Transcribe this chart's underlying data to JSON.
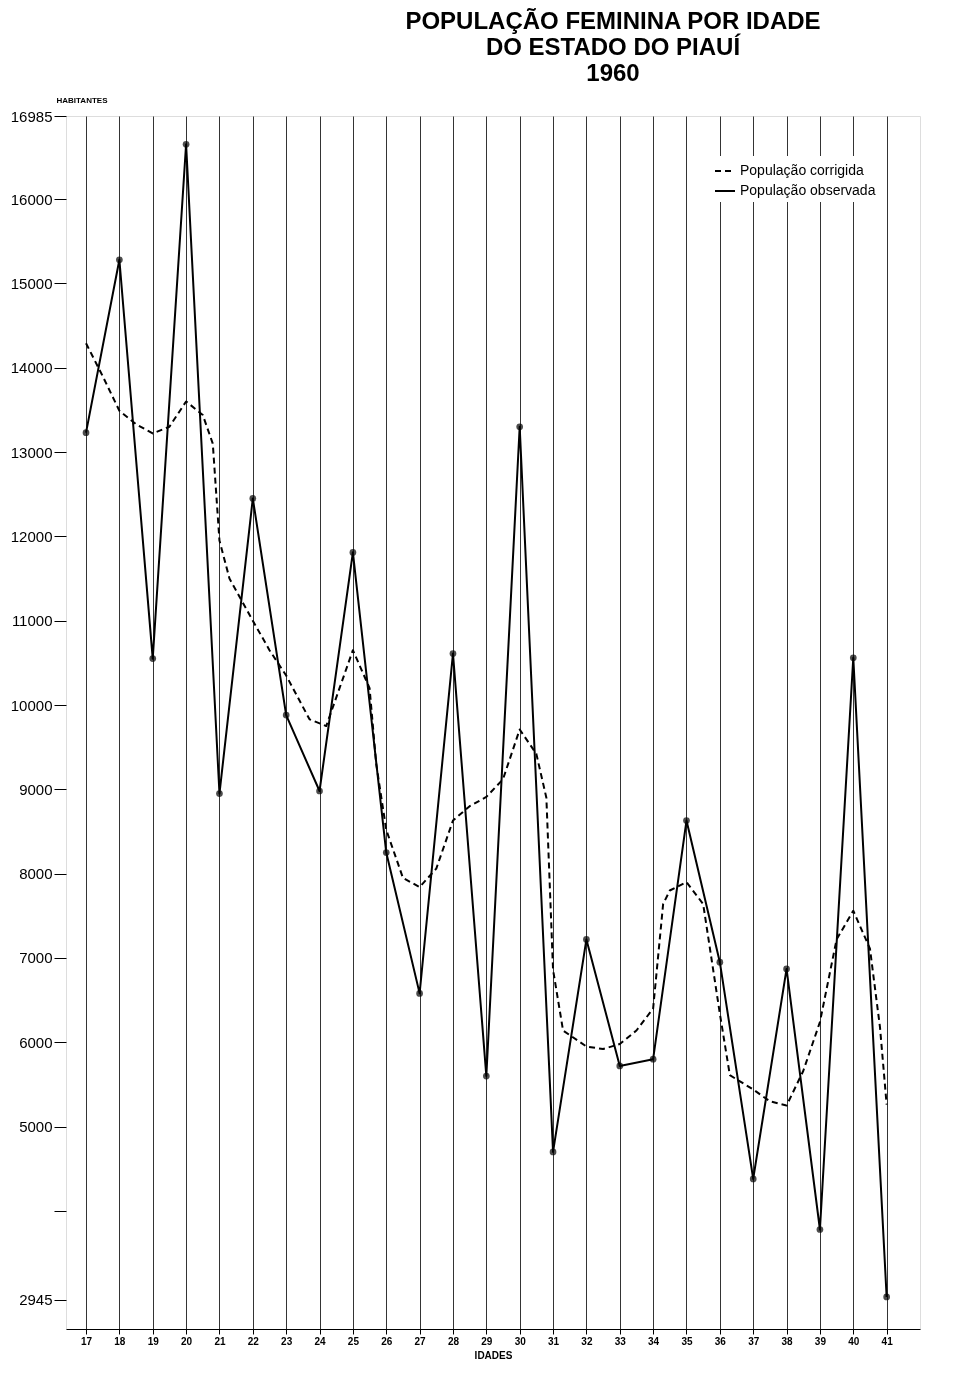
{
  "chart_data": {
    "type": "line",
    "title": "POPULAÇÃO FEMININA POR IDADE\nDO ESTADO DO PIAUÍ\n1960",
    "xlabel": "IDADES",
    "ylabel": "HABITANTES",
    "xlim": [
      16.4,
      42
    ],
    "xticks": [
      17,
      18,
      19,
      20,
      21,
      22,
      23,
      24,
      25,
      26,
      27,
      28,
      29,
      30,
      31,
      32,
      33,
      34,
      35,
      36,
      37,
      38,
      39,
      40,
      41
    ],
    "ylim": [
      2600,
      16985
    ],
    "yticks": [
      2945,
      {
        "value": 4000,
        "label": null
      },
      5000,
      6000,
      7000,
      8000,
      9000,
      10000,
      11000,
      12000,
      13000,
      14000,
      15000,
      16000,
      16985
    ],
    "grid": "x",
    "legend": "top right",
    "series": [
      {
        "name": "População corrigida",
        "color": "#000000",
        "line_style": "dashed",
        "marker": "none",
        "x": [
          17,
          17.5,
          18,
          18.5,
          19,
          19.5,
          20,
          20.5,
          20.8,
          21,
          21.3,
          22,
          22.5,
          23,
          23.7,
          24.2,
          24.6,
          25,
          25.5,
          25.7,
          26,
          26.5,
          27,
          27.5,
          28,
          28.5,
          29,
          29.5,
          30,
          30.5,
          30.8,
          31,
          31.3,
          32,
          32.5,
          33,
          33.5,
          34,
          34.3,
          34.5,
          35,
          35.5,
          36,
          36.3,
          37,
          37.5,
          38,
          38.5,
          39,
          39.5,
          40,
          40.5,
          40.8,
          41
        ],
        "values": [
          14290,
          13900,
          13490,
          13330,
          13220,
          13300,
          13600,
          13440,
          13100,
          11950,
          11500,
          11000,
          10650,
          10350,
          9830,
          9750,
          10200,
          10650,
          10200,
          9300,
          8520,
          7950,
          7840,
          8060,
          8630,
          8800,
          8910,
          9120,
          9710,
          9420,
          8900,
          6860,
          6140,
          5950,
          5920,
          5980,
          6140,
          6400,
          7640,
          7800,
          7900,
          7640,
          6340,
          5610,
          5440,
          5300,
          5250,
          5660,
          6240,
          7220,
          7560,
          7110,
          6180,
          5260
        ]
      },
      {
        "name": "População observada",
        "color": "#000000",
        "line_style": "solid",
        "marker": "circle",
        "x": [
          17,
          18,
          19,
          20,
          21,
          22,
          23,
          24,
          25,
          26,
          27,
          28,
          29,
          30,
          31,
          32,
          33,
          34,
          35,
          36,
          37,
          38,
          39,
          40,
          41
        ],
        "values": [
          13230,
          15280,
          10550,
          16650,
          8950,
          12450,
          9880,
          8980,
          11810,
          8250,
          6580,
          10610,
          5600,
          13300,
          4700,
          7220,
          5720,
          5800,
          8630,
          6950,
          4380,
          6870,
          3780,
          10560,
          2980
        ]
      }
    ]
  }
}
